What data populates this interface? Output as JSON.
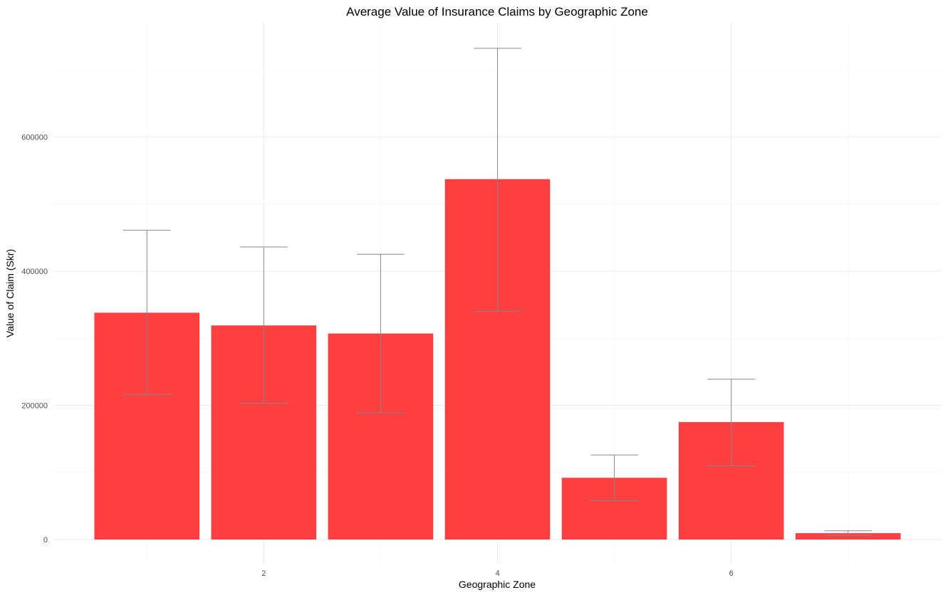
{
  "chart_data": {
    "type": "bar",
    "title": "Average Value of Insurance Claims by Geographic Zone",
    "xlabel": "Geographic Zone",
    "ylabel": "Value of Claim (Skr)",
    "x": [
      1,
      2,
      3,
      4,
      5,
      6,
      7
    ],
    "values": [
      338000,
      319000,
      307000,
      537000,
      92000,
      175000,
      9500
    ],
    "error_low": [
      216000,
      203000,
      189000,
      340000,
      58000,
      110000,
      6000
    ],
    "error_high": [
      461000,
      436000,
      425000,
      732000,
      126000,
      239000,
      13000
    ],
    "xlim": [
      0.2,
      7.8
    ],
    "ylim": [
      -36000,
      770000
    ],
    "x_ticks": [
      2,
      4,
      6
    ],
    "x_tick_labels": [
      "2",
      "4",
      "6"
    ],
    "y_ticks": [
      0,
      200000,
      400000,
      600000
    ],
    "y_tick_labels": [
      "0",
      "200000",
      "400000",
      "600000"
    ],
    "bar_color": "#ff4040",
    "error_bar_color": "#888888",
    "grid_color": "#ebebeb",
    "grid": true,
    "legend": "none"
  }
}
